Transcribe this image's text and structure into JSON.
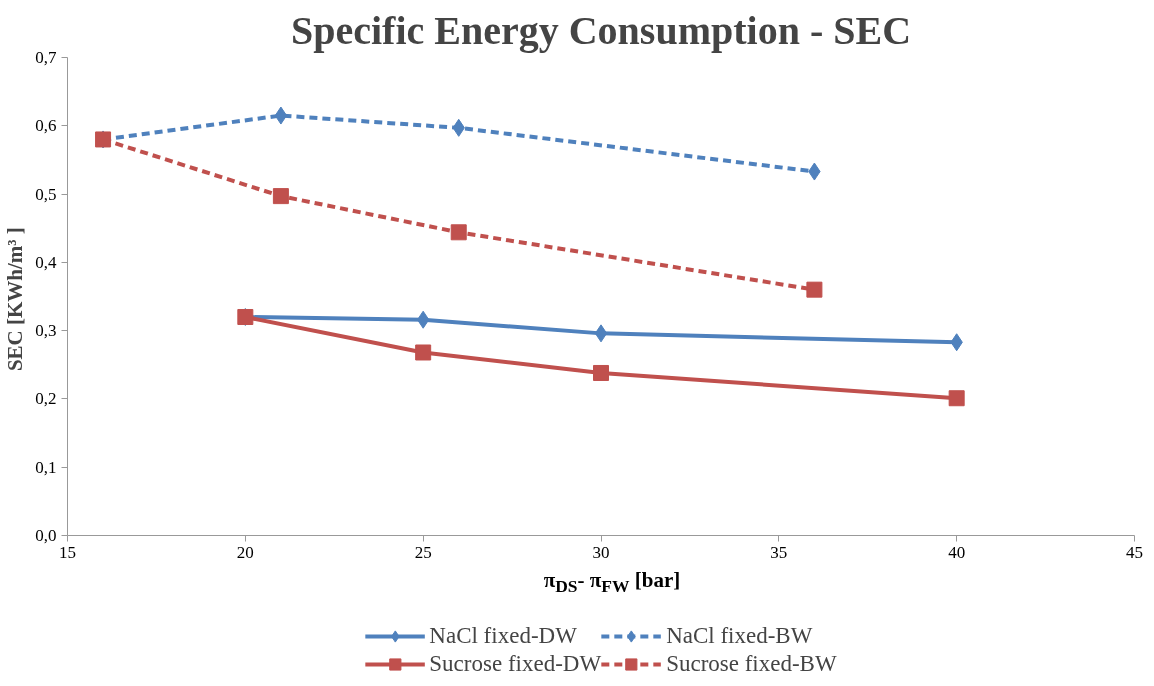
{
  "chart_data": {
    "type": "line",
    "title": "Specific Energy Consumption - SEC",
    "xlabel": "π$_{DS}$- π$_{FW}$ [bar]",
    "ylabel": "SEC  [KWh/m³ ]",
    "xlim": [
      15,
      45
    ],
    "xticks": [
      15,
      20,
      25,
      30,
      35,
      40,
      45
    ],
    "ylim": [
      0,
      0.7
    ],
    "yticks": [
      {
        "value": 0,
        "label": "0,0"
      },
      {
        "value": 0.1,
        "label": "0,1"
      },
      {
        "value": 0.2,
        "label": "0,2"
      },
      {
        "value": 0.3,
        "label": "0,3"
      },
      {
        "value": 0.4,
        "label": "0,4"
      },
      {
        "value": 0.5,
        "label": "0,5"
      },
      {
        "value": 0.6,
        "label": "0,6"
      },
      {
        "value": 0.7,
        "label": "0,7"
      }
    ],
    "grid": false,
    "legend": "bottom",
    "series": [
      {
        "name": "NaCl fixed-DW",
        "color": "#4f81bd",
        "marker": "diamond",
        "line_style": "solid",
        "x": [
          20,
          25,
          30,
          40
        ],
        "values": [
          0.32,
          0.316,
          0.296,
          0.283
        ]
      },
      {
        "name": "Sucrose fixed-DW",
        "color": "#c0504d",
        "marker": "square",
        "line_style": "solid",
        "x": [
          20,
          25,
          30,
          40
        ],
        "values": [
          0.32,
          0.268,
          0.238,
          0.201
        ]
      },
      {
        "name": "NaCl fixed-BW",
        "color": "#4f81bd",
        "marker": "diamond",
        "line_style": "dashed",
        "x": [
          16,
          21,
          26,
          36
        ],
        "values": [
          0.58,
          0.615,
          0.597,
          0.533
        ]
      },
      {
        "name": "Sucrose fixed-BW",
        "color": "#c0504d",
        "marker": "square",
        "line_style": "dashed",
        "x": [
          16,
          21,
          26,
          36
        ],
        "values": [
          0.58,
          0.497,
          0.444,
          0.36
        ]
      }
    ]
  }
}
